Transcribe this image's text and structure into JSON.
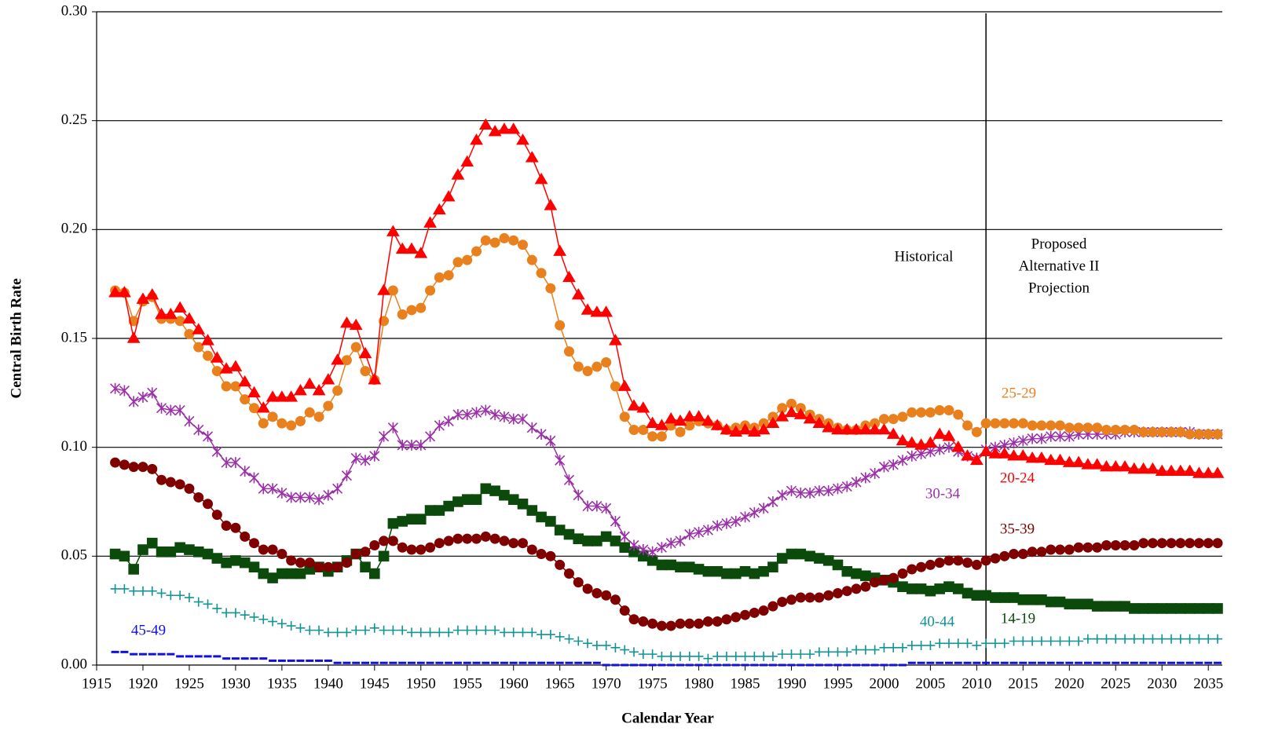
{
  "chart_data": {
    "type": "line",
    "x_label": "Calendar Year",
    "y_label": "Central Birth Rate",
    "annotations": [
      {
        "text": "Historical"
      },
      {
        "lines": [
          "Proposed",
          "Alternative II",
          "Projection"
        ]
      }
    ],
    "vline": 2011,
    "grid": true,
    "xlim": [
      1915,
      2036
    ],
    "ylim": [
      0,
      0.3
    ],
    "xticks": [
      1915,
      1920,
      1925,
      1930,
      1935,
      1940,
      1945,
      1950,
      1955,
      1960,
      1965,
      1970,
      1975,
      1980,
      1985,
      1990,
      1995,
      2000,
      2005,
      2010,
      2015,
      2020,
      2025,
      2030,
      2035
    ],
    "yticks": [
      {
        "value": 0,
        "label": "0.00"
      },
      {
        "value": 0.05,
        "label": "0.05"
      },
      {
        "value": 0.1,
        "label": "0.10"
      },
      {
        "value": 0.15,
        "label": "0.15"
      },
      {
        "value": 0.2,
        "label": "0.20"
      },
      {
        "value": 0.25,
        "label": "0.25"
      },
      {
        "value": 0.3,
        "label": "0.30"
      }
    ],
    "x": [
      1917,
      1918,
      1919,
      1920,
      1921,
      1922,
      1923,
      1924,
      1925,
      1926,
      1927,
      1928,
      1929,
      1930,
      1931,
      1932,
      1933,
      1934,
      1935,
      1936,
      1937,
      1938,
      1939,
      1940,
      1941,
      1942,
      1943,
      1944,
      1945,
      1946,
      1947,
      1948,
      1949,
      1950,
      1951,
      1952,
      1953,
      1954,
      1955,
      1956,
      1957,
      1958,
      1959,
      1960,
      1961,
      1962,
      1963,
      1964,
      1965,
      1966,
      1967,
      1968,
      1969,
      1970,
      1971,
      1972,
      1973,
      1974,
      1975,
      1976,
      1977,
      1978,
      1979,
      1980,
      1981,
      1982,
      1983,
      1984,
      1985,
      1986,
      1987,
      1988,
      1989,
      1990,
      1991,
      1992,
      1993,
      1994,
      1995,
      1996,
      1997,
      1998,
      1999,
      2000,
      2001,
      2002,
      2003,
      2004,
      2005,
      2006,
      2007,
      2008,
      2009,
      2010,
      2011,
      2012,
      2013,
      2014,
      2015,
      2016,
      2017,
      2018,
      2019,
      2020,
      2021,
      2022,
      2023,
      2024,
      2025,
      2026,
      2027,
      2028,
      2029,
      2030,
      2031,
      2032,
      2033,
      2034,
      2035,
      2036
    ],
    "series": [
      {
        "name": "14-19",
        "color": "#0b4a0b",
        "marker": "square",
        "values": [
          0.051,
          0.05,
          0.044,
          0.053,
          0.056,
          0.052,
          0.052,
          0.054,
          0.053,
          0.052,
          0.051,
          0.049,
          0.047,
          0.048,
          0.047,
          0.045,
          0.042,
          0.04,
          0.042,
          0.042,
          0.042,
          0.044,
          0.045,
          0.043,
          0.045,
          0.048,
          0.051,
          0.045,
          0.042,
          0.05,
          0.065,
          0.066,
          0.067,
          0.067,
          0.071,
          0.071,
          0.073,
          0.075,
          0.076,
          0.076,
          0.081,
          0.08,
          0.078,
          0.076,
          0.074,
          0.071,
          0.068,
          0.066,
          0.062,
          0.06,
          0.058,
          0.057,
          0.057,
          0.059,
          0.057,
          0.054,
          0.052,
          0.05,
          0.048,
          0.046,
          0.046,
          0.045,
          0.045,
          0.044,
          0.043,
          0.043,
          0.042,
          0.042,
          0.043,
          0.042,
          0.043,
          0.045,
          0.049,
          0.051,
          0.051,
          0.05,
          0.049,
          0.048,
          0.046,
          0.043,
          0.042,
          0.041,
          0.04,
          0.039,
          0.038,
          0.036,
          0.035,
          0.035,
          0.034,
          0.035,
          0.036,
          0.035,
          0.033,
          0.032,
          0.032,
          0.031,
          0.031,
          0.031,
          0.03,
          0.03,
          0.03,
          0.029,
          0.029,
          0.028,
          0.028,
          0.028,
          0.027,
          0.027,
          0.027,
          0.027,
          0.026,
          0.026,
          0.026,
          0.026,
          0.026,
          0.026,
          0.026,
          0.026,
          0.026,
          0.026
        ]
      },
      {
        "name": "20-24",
        "color": "#ff0000",
        "marker": "triangle",
        "values": [
          0.171,
          0.171,
          0.15,
          0.168,
          0.17,
          0.161,
          0.161,
          0.164,
          0.159,
          0.154,
          0.149,
          0.141,
          0.136,
          0.137,
          0.13,
          0.125,
          0.118,
          0.123,
          0.123,
          0.123,
          0.126,
          0.129,
          0.126,
          0.131,
          0.14,
          0.157,
          0.156,
          0.143,
          0.131,
          0.172,
          0.199,
          0.191,
          0.191,
          0.189,
          0.203,
          0.209,
          0.215,
          0.225,
          0.231,
          0.241,
          0.248,
          0.245,
          0.246,
          0.246,
          0.241,
          0.233,
          0.223,
          0.211,
          0.19,
          0.178,
          0.17,
          0.163,
          0.162,
          0.162,
          0.149,
          0.128,
          0.119,
          0.118,
          0.111,
          0.11,
          0.113,
          0.112,
          0.114,
          0.114,
          0.112,
          0.11,
          0.108,
          0.107,
          0.108,
          0.107,
          0.108,
          0.111,
          0.114,
          0.116,
          0.115,
          0.113,
          0.111,
          0.109,
          0.108,
          0.108,
          0.108,
          0.108,
          0.108,
          0.108,
          0.106,
          0.103,
          0.102,
          0.101,
          0.102,
          0.106,
          0.105,
          0.1,
          0.096,
          0.094,
          0.098,
          0.097,
          0.097,
          0.096,
          0.096,
          0.095,
          0.095,
          0.094,
          0.094,
          0.093,
          0.093,
          0.092,
          0.092,
          0.091,
          0.091,
          0.091,
          0.09,
          0.09,
          0.09,
          0.089,
          0.089,
          0.089,
          0.089,
          0.088,
          0.088,
          0.088
        ]
      },
      {
        "name": "25-29",
        "color": "#e8801e",
        "marker": "circle",
        "values": [
          0.172,
          0.171,
          0.158,
          0.167,
          0.169,
          0.159,
          0.159,
          0.158,
          0.152,
          0.146,
          0.142,
          0.135,
          0.128,
          0.128,
          0.122,
          0.118,
          0.111,
          0.114,
          0.111,
          0.11,
          0.112,
          0.116,
          0.114,
          0.119,
          0.126,
          0.14,
          0.146,
          0.135,
          0.131,
          0.158,
          0.172,
          0.161,
          0.163,
          0.164,
          0.172,
          0.178,
          0.179,
          0.185,
          0.186,
          0.19,
          0.195,
          0.194,
          0.196,
          0.195,
          0.193,
          0.186,
          0.18,
          0.173,
          0.156,
          0.144,
          0.137,
          0.135,
          0.137,
          0.139,
          0.128,
          0.114,
          0.108,
          0.108,
          0.105,
          0.105,
          0.11,
          0.107,
          0.11,
          0.112,
          0.111,
          0.11,
          0.108,
          0.109,
          0.11,
          0.109,
          0.111,
          0.114,
          0.118,
          0.12,
          0.118,
          0.115,
          0.113,
          0.111,
          0.109,
          0.108,
          0.108,
          0.11,
          0.111,
          0.113,
          0.113,
          0.114,
          0.116,
          0.116,
          0.116,
          0.117,
          0.117,
          0.115,
          0.11,
          0.107,
          0.111,
          0.111,
          0.111,
          0.111,
          0.111,
          0.11,
          0.11,
          0.11,
          0.11,
          0.109,
          0.109,
          0.109,
          0.109,
          0.108,
          0.108,
          0.108,
          0.108,
          0.107,
          0.107,
          0.107,
          0.107,
          0.107,
          0.106,
          0.106,
          0.106,
          0.106
        ]
      },
      {
        "name": "30-34",
        "color": "#9b30a8",
        "marker": "star",
        "values": [
          0.127,
          0.126,
          0.121,
          0.123,
          0.125,
          0.118,
          0.117,
          0.117,
          0.112,
          0.108,
          0.105,
          0.098,
          0.093,
          0.093,
          0.089,
          0.086,
          0.081,
          0.081,
          0.079,
          0.077,
          0.077,
          0.077,
          0.076,
          0.078,
          0.081,
          0.087,
          0.095,
          0.094,
          0.096,
          0.105,
          0.109,
          0.101,
          0.101,
          0.101,
          0.105,
          0.11,
          0.112,
          0.115,
          0.115,
          0.116,
          0.117,
          0.115,
          0.114,
          0.113,
          0.113,
          0.109,
          0.106,
          0.103,
          0.094,
          0.085,
          0.078,
          0.073,
          0.073,
          0.072,
          0.066,
          0.059,
          0.055,
          0.053,
          0.052,
          0.054,
          0.056,
          0.057,
          0.06,
          0.061,
          0.062,
          0.064,
          0.065,
          0.066,
          0.068,
          0.07,
          0.072,
          0.075,
          0.078,
          0.08,
          0.079,
          0.079,
          0.08,
          0.08,
          0.081,
          0.082,
          0.084,
          0.086,
          0.088,
          0.091,
          0.092,
          0.094,
          0.096,
          0.097,
          0.098,
          0.099,
          0.1,
          0.098,
          0.096,
          0.095,
          0.099,
          0.1,
          0.101,
          0.102,
          0.103,
          0.104,
          0.104,
          0.105,
          0.105,
          0.105,
          0.106,
          0.106,
          0.106,
          0.106,
          0.106,
          0.107,
          0.107,
          0.107,
          0.107,
          0.107,
          0.107,
          0.107,
          0.107,
          0.106,
          0.106,
          0.106
        ]
      },
      {
        "name": "35-39",
        "color": "#800000",
        "marker": "circle",
        "values": [
          0.093,
          0.092,
          0.091,
          0.091,
          0.09,
          0.085,
          0.084,
          0.083,
          0.081,
          0.077,
          0.074,
          0.069,
          0.064,
          0.063,
          0.059,
          0.056,
          0.053,
          0.053,
          0.051,
          0.048,
          0.047,
          0.047,
          0.045,
          0.045,
          0.045,
          0.047,
          0.051,
          0.052,
          0.055,
          0.057,
          0.057,
          0.054,
          0.053,
          0.053,
          0.054,
          0.056,
          0.057,
          0.058,
          0.058,
          0.058,
          0.059,
          0.058,
          0.057,
          0.056,
          0.056,
          0.053,
          0.051,
          0.05,
          0.046,
          0.042,
          0.038,
          0.035,
          0.033,
          0.032,
          0.03,
          0.025,
          0.021,
          0.02,
          0.019,
          0.018,
          0.018,
          0.019,
          0.019,
          0.019,
          0.02,
          0.02,
          0.021,
          0.022,
          0.023,
          0.024,
          0.025,
          0.027,
          0.029,
          0.03,
          0.031,
          0.031,
          0.031,
          0.032,
          0.033,
          0.034,
          0.035,
          0.036,
          0.038,
          0.039,
          0.04,
          0.042,
          0.044,
          0.045,
          0.046,
          0.047,
          0.048,
          0.048,
          0.047,
          0.046,
          0.048,
          0.049,
          0.05,
          0.051,
          0.051,
          0.052,
          0.052,
          0.053,
          0.053,
          0.053,
          0.054,
          0.054,
          0.054,
          0.055,
          0.055,
          0.055,
          0.055,
          0.056,
          0.056,
          0.056,
          0.056,
          0.056,
          0.056,
          0.056,
          0.056,
          0.056
        ]
      },
      {
        "name": "40-44",
        "color": "#129494",
        "marker": "plus",
        "values": [
          0.035,
          0.035,
          0.034,
          0.034,
          0.034,
          0.033,
          0.032,
          0.032,
          0.031,
          0.029,
          0.028,
          0.026,
          0.024,
          0.024,
          0.023,
          0.022,
          0.021,
          0.02,
          0.019,
          0.018,
          0.017,
          0.016,
          0.016,
          0.015,
          0.015,
          0.015,
          0.016,
          0.016,
          0.017,
          0.016,
          0.016,
          0.016,
          0.015,
          0.015,
          0.015,
          0.015,
          0.015,
          0.016,
          0.016,
          0.016,
          0.016,
          0.016,
          0.015,
          0.015,
          0.015,
          0.015,
          0.014,
          0.014,
          0.013,
          0.012,
          0.011,
          0.01,
          0.009,
          0.009,
          0.008,
          0.007,
          0.006,
          0.005,
          0.005,
          0.004,
          0.004,
          0.004,
          0.004,
          0.004,
          0.003,
          0.004,
          0.004,
          0.004,
          0.004,
          0.004,
          0.004,
          0.004,
          0.005,
          0.005,
          0.005,
          0.005,
          0.006,
          0.006,
          0.006,
          0.006,
          0.007,
          0.007,
          0.007,
          0.008,
          0.008,
          0.008,
          0.009,
          0.009,
          0.009,
          0.01,
          0.01,
          0.01,
          0.01,
          0.009,
          0.01,
          0.01,
          0.01,
          0.011,
          0.011,
          0.011,
          0.011,
          0.011,
          0.011,
          0.011,
          0.011,
          0.012,
          0.012,
          0.012,
          0.012,
          0.012,
          0.012,
          0.012,
          0.012,
          0.012,
          0.012,
          0.012,
          0.012,
          0.012,
          0.012,
          0.012
        ]
      },
      {
        "name": "45-49",
        "color": "#1010e0",
        "marker": "dash",
        "values": [
          0.006,
          0.006,
          0.005,
          0.005,
          0.005,
          0.005,
          0.005,
          0.004,
          0.004,
          0.004,
          0.004,
          0.004,
          0.003,
          0.003,
          0.003,
          0.003,
          0.003,
          0.002,
          0.002,
          0.002,
          0.002,
          0.002,
          0.002,
          0.002,
          0.001,
          0.001,
          0.001,
          0.001,
          0.001,
          0.001,
          0.001,
          0.001,
          0.001,
          0.001,
          0.001,
          0.001,
          0.001,
          0.001,
          0.001,
          0.001,
          0.001,
          0.001,
          0.001,
          0.001,
          0.001,
          0.001,
          0.001,
          0.001,
          0.001,
          0.001,
          0.001,
          0.001,
          0.001,
          0,
          0,
          0,
          0,
          0,
          0,
          0,
          0,
          0,
          0,
          0,
          0,
          0,
          0,
          0,
          0,
          0,
          0,
          0,
          0,
          0,
          0,
          0,
          0,
          0,
          0,
          0,
          0,
          0,
          0,
          0,
          0,
          0,
          0.001,
          0.001,
          0.001,
          0.001,
          0.001,
          0.001,
          0.001,
          0.001,
          0.001,
          0.001,
          0.001,
          0.001,
          0.001,
          0.001,
          0.001,
          0.001,
          0.001,
          0.001,
          0.001,
          0.001,
          0.001,
          0.001,
          0.001,
          0.001,
          0.001,
          0.001,
          0.001,
          0.001,
          0.001,
          0.001,
          0.001,
          0.001,
          0.001,
          0.001
        ]
      }
    ]
  }
}
